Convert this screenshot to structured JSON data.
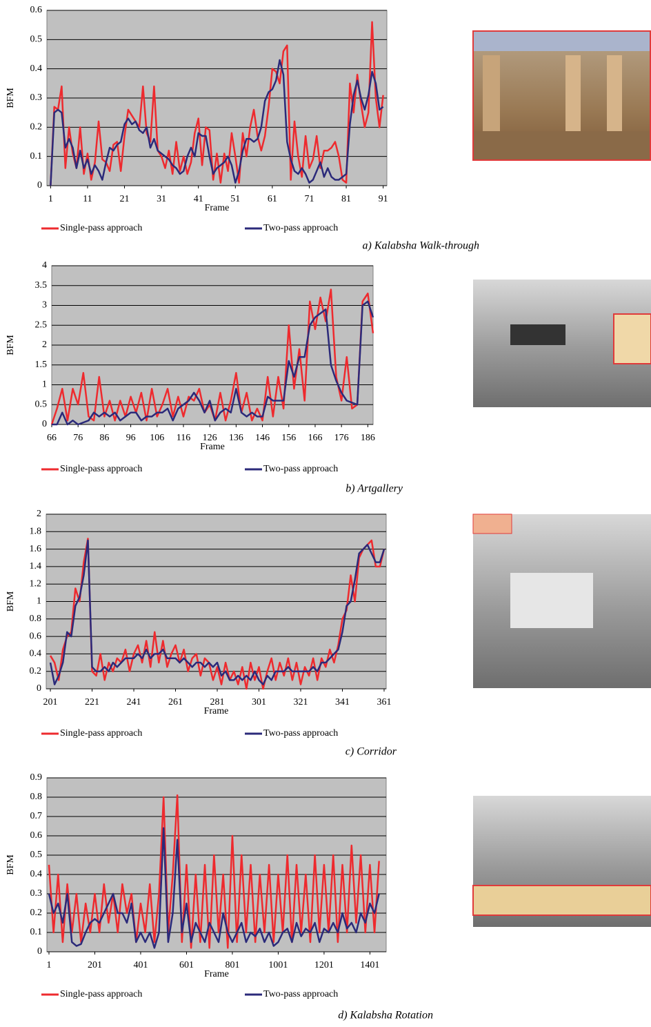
{
  "chart_data": [
    {
      "type": "line",
      "ylabel": "BFM",
      "xlabel": "Frame",
      "caption": "a) Kalabsha Walk-through",
      "grid": true,
      "background": "#c0c0c0",
      "xlim": [
        0,
        92
      ],
      "ylim": [
        0,
        0.6
      ],
      "xticks": [
        1,
        11,
        21,
        31,
        41,
        51,
        61,
        71,
        81,
        91
      ],
      "yticks": [
        0,
        0.1,
        0.2,
        0.3,
        0.4,
        0.5,
        0.6
      ],
      "x": [
        1,
        2,
        3,
        4,
        5,
        6,
        7,
        8,
        9,
        10,
        11,
        12,
        13,
        14,
        15,
        16,
        17,
        18,
        19,
        20,
        21,
        22,
        23,
        24,
        25,
        26,
        27,
        28,
        29,
        30,
        31,
        32,
        33,
        34,
        35,
        36,
        37,
        38,
        39,
        40,
        41,
        42,
        43,
        44,
        45,
        46,
        47,
        48,
        49,
        50,
        51,
        52,
        53,
        54,
        55,
        56,
        57,
        58,
        59,
        60,
        61,
        62,
        63,
        64,
        65,
        66,
        67,
        68,
        69,
        70,
        71,
        72,
        73,
        74,
        75,
        76,
        77,
        78,
        79,
        80,
        81,
        82,
        83,
        84,
        85,
        86,
        87,
        88,
        89,
        90,
        91
      ],
      "series": [
        {
          "name": "Single-pass approach",
          "color": "#ee2a2e",
          "values": [
            0,
            0.27,
            0.26,
            0.34,
            0.06,
            0.2,
            0.11,
            0.06,
            0.2,
            0.04,
            0.11,
            0.02,
            0.08,
            0.22,
            0.09,
            0.08,
            0.05,
            0.14,
            0.15,
            0.05,
            0.17,
            0.26,
            0.24,
            0.22,
            0.2,
            0.34,
            0.18,
            0.15,
            0.34,
            0.12,
            0.1,
            0.06,
            0.12,
            0.04,
            0.15,
            0.05,
            0.1,
            0.04,
            0.08,
            0.18,
            0.23,
            0.07,
            0.2,
            0.19,
            0.02,
            0.11,
            0.01,
            0.11,
            0.05,
            0.18,
            0.1,
            0.01,
            0.18,
            0.1,
            0.2,
            0.26,
            0.17,
            0.12,
            0.17,
            0.27,
            0.4,
            0.39,
            0.35,
            0.46,
            0.48,
            0.02,
            0.22,
            0.1,
            0.03,
            0.17,
            0.06,
            0.09,
            0.17,
            0.06,
            0.12,
            0.12,
            0.13,
            0.15,
            0.1,
            0.02,
            0.01,
            0.35,
            0.25,
            0.38,
            0.28,
            0.2,
            0.25,
            0.56,
            0.3,
            0.2,
            0.31
          ]
        },
        {
          "name": "Two-pass approach",
          "color": "#2b2a7a",
          "values": [
            0,
            0.25,
            0.26,
            0.25,
            0.13,
            0.16,
            0.13,
            0.06,
            0.12,
            0.06,
            0.09,
            0.04,
            0.07,
            0.05,
            0.02,
            0.08,
            0.13,
            0.12,
            0.14,
            0.15,
            0.21,
            0.23,
            0.21,
            0.22,
            0.19,
            0.18,
            0.2,
            0.13,
            0.16,
            0.12,
            0.11,
            0.1,
            0.09,
            0.07,
            0.06,
            0.04,
            0.05,
            0.1,
            0.13,
            0.1,
            0.18,
            0.17,
            0.17,
            0.1,
            0.04,
            0.06,
            0.07,
            0.08,
            0.1,
            0.07,
            0.01,
            0.05,
            0.12,
            0.16,
            0.16,
            0.15,
            0.16,
            0.2,
            0.29,
            0.32,
            0.33,
            0.36,
            0.43,
            0.38,
            0.15,
            0.09,
            0.05,
            0.04,
            0.06,
            0.04,
            0.01,
            0.02,
            0.05,
            0.08,
            0.03,
            0.06,
            0.03,
            0.02,
            0.02,
            0.03,
            0.04,
            0.21,
            0.31,
            0.36,
            0.3,
            0.26,
            0.31,
            0.39,
            0.35,
            0.26,
            0.27
          ]
        }
      ]
    },
    {
      "type": "line",
      "ylabel": "BFM",
      "xlabel": "Frame",
      "caption": "b) Artgallery",
      "grid": true,
      "background": "#c0c0c0",
      "xlim": [
        66,
        188
      ],
      "ylim": [
        0,
        4
      ],
      "xticks": [
        66,
        76,
        86,
        96,
        106,
        116,
        126,
        136,
        146,
        156,
        166,
        176,
        186
      ],
      "yticks": [
        0,
        0.5,
        1,
        1.5,
        2,
        2.5,
        3,
        3.5,
        4
      ],
      "x": [
        66,
        68,
        70,
        72,
        74,
        76,
        78,
        80,
        82,
        84,
        86,
        88,
        90,
        92,
        94,
        96,
        98,
        100,
        102,
        104,
        106,
        108,
        110,
        112,
        114,
        116,
        118,
        120,
        122,
        124,
        126,
        128,
        130,
        132,
        134,
        136,
        138,
        140,
        142,
        144,
        146,
        148,
        150,
        152,
        154,
        156,
        158,
        160,
        162,
        164,
        166,
        168,
        170,
        172,
        174,
        176,
        178,
        180,
        182,
        184,
        186,
        188
      ],
      "series": [
        {
          "name": "Single-pass approach",
          "color": "#ee2a2e",
          "values": [
            0,
            0.4,
            0.9,
            0.1,
            0.9,
            0.5,
            1.3,
            0.2,
            0.1,
            1.2,
            0.2,
            0.6,
            0.1,
            0.6,
            0.2,
            0.7,
            0.3,
            0.8,
            0.1,
            0.9,
            0.2,
            0.5,
            0.9,
            0.2,
            0.7,
            0.2,
            0.7,
            0.6,
            0.9,
            0.3,
            0.5,
            0.1,
            0.8,
            0.1,
            0.6,
            1.3,
            0.3,
            0.8,
            0.1,
            0.4,
            0.1,
            1.2,
            0.2,
            1.2,
            0.4,
            2.5,
            0.9,
            1.9,
            0.6,
            3.1,
            2.4,
            3.2,
            2.6,
            3.4,
            1.2,
            0.6,
            1.7,
            0.4,
            0.5,
            3.1,
            3.3,
            2.3
          ]
        },
        {
          "name": "Two-pass approach",
          "color": "#2b2a7a",
          "values": [
            0,
            0,
            0.3,
            0,
            0.1,
            0,
            0.05,
            0.1,
            0.3,
            0.2,
            0.3,
            0.2,
            0.3,
            0.1,
            0.2,
            0.3,
            0.3,
            0.1,
            0.2,
            0.2,
            0.3,
            0.3,
            0.4,
            0.1,
            0.4,
            0.5,
            0.6,
            0.8,
            0.6,
            0.3,
            0.6,
            0.1,
            0.3,
            0.4,
            0.3,
            0.9,
            0.3,
            0.2,
            0.3,
            0.2,
            0.2,
            0.7,
            0.6,
            0.6,
            0.6,
            1.6,
            1.2,
            1.7,
            1.7,
            2.5,
            2.7,
            2.8,
            2.9,
            1.5,
            1.1,
            0.8,
            0.6,
            0.55,
            0.5,
            3.0,
            3.1,
            2.7
          ]
        }
      ]
    },
    {
      "type": "line",
      "ylabel": "BFM",
      "xlabel": "Frame",
      "caption": "c) Corridor",
      "grid": true,
      "background": "#c0c0c0",
      "xlim": [
        199,
        362
      ],
      "ylim": [
        0,
        2
      ],
      "xticks": [
        201,
        221,
        241,
        261,
        281,
        301,
        321,
        341,
        361
      ],
      "yticks": [
        0,
        0.2,
        0.4,
        0.6,
        0.8,
        1,
        1.2,
        1.4,
        1.6,
        1.8,
        2
      ],
      "x": [
        201,
        203,
        205,
        207,
        209,
        211,
        213,
        215,
        217,
        219,
        221,
        223,
        225,
        227,
        229,
        231,
        233,
        235,
        237,
        239,
        241,
        243,
        245,
        247,
        249,
        251,
        253,
        255,
        257,
        259,
        261,
        263,
        265,
        267,
        269,
        271,
        273,
        275,
        277,
        279,
        281,
        283,
        285,
        287,
        289,
        291,
        293,
        295,
        297,
        299,
        301,
        303,
        305,
        307,
        309,
        311,
        313,
        315,
        317,
        319,
        321,
        323,
        325,
        327,
        329,
        331,
        333,
        335,
        337,
        339,
        341,
        343,
        345,
        347,
        349,
        351,
        353,
        355,
        357,
        359,
        361
      ],
      "series": [
        {
          "name": "Single-pass approach",
          "color": "#ee2a2e",
          "values": [
            0.38,
            0.3,
            0.1,
            0.45,
            0.6,
            0.65,
            1.15,
            1.0,
            1.45,
            1.72,
            0.2,
            0.15,
            0.4,
            0.1,
            0.3,
            0.2,
            0.35,
            0.3,
            0.45,
            0.2,
            0.4,
            0.5,
            0.3,
            0.55,
            0.25,
            0.65,
            0.3,
            0.55,
            0.25,
            0.4,
            0.5,
            0.3,
            0.45,
            0.2,
            0.35,
            0.4,
            0.15,
            0.35,
            0.3,
            0.1,
            0.25,
            0.05,
            0.3,
            0.1,
            0.2,
            0.05,
            0.25,
            0,
            0.3,
            0.1,
            0.25,
            0,
            0.2,
            0.35,
            0.1,
            0.3,
            0.15,
            0.35,
            0.1,
            0.3,
            0.05,
            0.25,
            0.15,
            0.35,
            0.1,
            0.35,
            0.25,
            0.45,
            0.3,
            0.5,
            0.8,
            0.9,
            1.3,
            1.0,
            1.5,
            1.6,
            1.65,
            1.7,
            1.4,
            1.4,
            1.6
          ]
        },
        {
          "name": "Two-pass approach",
          "color": "#2b2a7a",
          "values": [
            0.3,
            0.05,
            0.15,
            0.3,
            0.65,
            0.6,
            0.95,
            1.05,
            1.3,
            1.7,
            0.25,
            0.2,
            0.2,
            0.25,
            0.2,
            0.3,
            0.25,
            0.3,
            0.35,
            0.35,
            0.35,
            0.4,
            0.35,
            0.45,
            0.35,
            0.4,
            0.4,
            0.45,
            0.35,
            0.35,
            0.35,
            0.3,
            0.35,
            0.3,
            0.25,
            0.3,
            0.3,
            0.25,
            0.3,
            0.25,
            0.3,
            0.15,
            0.2,
            0.1,
            0.1,
            0.15,
            0.1,
            0.15,
            0.1,
            0.2,
            0.1,
            0.05,
            0.15,
            0.1,
            0.2,
            0.2,
            0.2,
            0.25,
            0.2,
            0.2,
            0.2,
            0.2,
            0.2,
            0.25,
            0.2,
            0.3,
            0.3,
            0.35,
            0.4,
            0.45,
            0.65,
            0.95,
            1.0,
            1.25,
            1.55,
            1.6,
            1.65,
            1.55,
            1.45,
            1.45,
            1.6
          ]
        }
      ]
    },
    {
      "type": "line",
      "ylabel": "BFM",
      "xlabel": "Frame",
      "caption": "d) Kalabsha Rotation",
      "grid": true,
      "background": "#c0c0c0",
      "xlim": [
        -8,
        1472
      ],
      "ylim": [
        0,
        0.9
      ],
      "xticks": [
        1,
        201,
        401,
        601,
        801,
        1001,
        1201,
        1401
      ],
      "yticks": [
        0,
        0.1,
        0.2,
        0.3,
        0.4,
        0.5,
        0.6,
        0.7,
        0.8,
        0.9
      ],
      "x": [
        1,
        21,
        41,
        61,
        81,
        101,
        121,
        141,
        161,
        181,
        201,
        221,
        241,
        261,
        281,
        301,
        321,
        341,
        361,
        381,
        401,
        421,
        441,
        461,
        481,
        501,
        521,
        541,
        561,
        581,
        601,
        621,
        641,
        661,
        681,
        701,
        721,
        741,
        761,
        781,
        801,
        821,
        841,
        861,
        881,
        901,
        921,
        941,
        961,
        981,
        1001,
        1021,
        1041,
        1061,
        1081,
        1101,
        1121,
        1141,
        1161,
        1181,
        1201,
        1221,
        1241,
        1261,
        1281,
        1301,
        1321,
        1341,
        1361,
        1381,
        1401,
        1421,
        1441
      ],
      "series": [
        {
          "name": "Single-pass approach",
          "color": "#ee2a2e",
          "values": [
            0.45,
            0.1,
            0.4,
            0.05,
            0.35,
            0.1,
            0.3,
            0.05,
            0.25,
            0.1,
            0.3,
            0.1,
            0.35,
            0.15,
            0.3,
            0.1,
            0.35,
            0.2,
            0.3,
            0.05,
            0.25,
            0.1,
            0.35,
            0.05,
            0.3,
            0.8,
            0.1,
            0.4,
            0.81,
            0.05,
            0.45,
            0.02,
            0.4,
            0.05,
            0.45,
            0.02,
            0.5,
            0.1,
            0.4,
            0.02,
            0.6,
            0.05,
            0.5,
            0.1,
            0.45,
            0.05,
            0.4,
            0.1,
            0.45,
            0.05,
            0.4,
            0.1,
            0.5,
            0.05,
            0.45,
            0.1,
            0.4,
            0.05,
            0.5,
            0.1,
            0.45,
            0.1,
            0.5,
            0.05,
            0.45,
            0.1,
            0.55,
            0.15,
            0.5,
            0.1,
            0.45,
            0.1,
            0.47
          ]
        },
        {
          "name": "Two-pass approach",
          "color": "#2b2a7a",
          "values": [
            0.3,
            0.2,
            0.25,
            0.15,
            0.3,
            0.05,
            0.03,
            0.04,
            0.1,
            0.15,
            0.17,
            0.15,
            0.2,
            0.25,
            0.3,
            0.2,
            0.2,
            0.15,
            0.25,
            0.05,
            0.1,
            0.05,
            0.1,
            0.02,
            0.1,
            0.64,
            0.05,
            0.2,
            0.58,
            0.1,
            0.25,
            0.05,
            0.15,
            0.1,
            0.05,
            0.15,
            0.1,
            0.05,
            0.2,
            0.1,
            0.05,
            0.1,
            0.15,
            0.05,
            0.1,
            0.08,
            0.12,
            0.05,
            0.1,
            0.03,
            0.05,
            0.1,
            0.12,
            0.05,
            0.15,
            0.08,
            0.12,
            0.1,
            0.15,
            0.05,
            0.12,
            0.1,
            0.15,
            0.1,
            0.2,
            0.12,
            0.15,
            0.1,
            0.2,
            0.15,
            0.25,
            0.2,
            0.3
          ]
        }
      ]
    }
  ]
}
